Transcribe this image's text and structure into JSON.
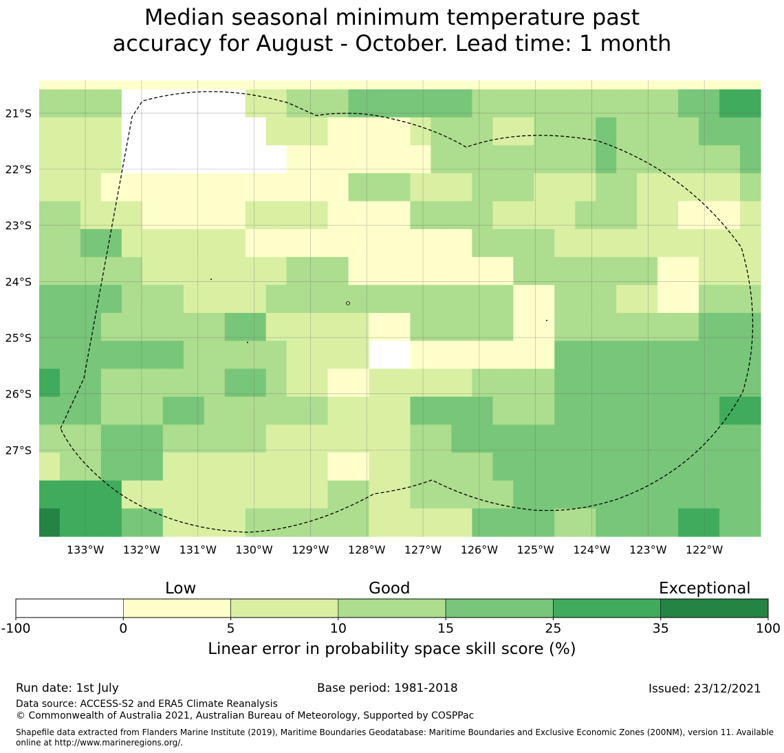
{
  "title": {
    "line1": "Median seasonal minimum temperature past",
    "line2": "accuracy for August - October. Lead time: 1 month"
  },
  "map": {
    "lat_labels": [
      "21°S",
      "22°S",
      "23°S",
      "24°S",
      "25°S",
      "26°S",
      "27°S"
    ],
    "lon_labels": [
      "133°W",
      "132°W",
      "131°W",
      "130°W",
      "129°W",
      "128°W",
      "127°W",
      "126°W",
      "125°W",
      "124°W",
      "123°W",
      "122°W"
    ],
    "lat_values": [
      -21,
      -22,
      -23,
      -24,
      -25,
      -26,
      -27
    ],
    "lon_values": [
      -133,
      -132,
      -131,
      -130,
      -129,
      -128,
      -127,
      -126,
      -125,
      -124,
      -123,
      -122
    ],
    "extent": {
      "lon_min": -133.82,
      "lon_max": -121.0,
      "lat_top": -20.42,
      "lat_bottom": -28.54
    },
    "grid_cell_deg": 0.5556,
    "category_colors": [
      "#ffffff",
      "#ffffcc",
      "#d9f0a3",
      "#addd8e",
      "#78c679",
      "#41ab5d",
      "#238443"
    ],
    "cells": [
      [
        1,
        1,
        1,
        1,
        1,
        1,
        1,
        1,
        1,
        1,
        1,
        1,
        1,
        1,
        1,
        1,
        1,
        1,
        1,
        1,
        1,
        1,
        1,
        1,
        1,
        1,
        1,
        1,
        1,
        1,
        1,
        1,
        1,
        1,
        1
      ],
      [
        3,
        3,
        3,
        3,
        0,
        0,
        0,
        0,
        0,
        0,
        2,
        2,
        3,
        3,
        3,
        4,
        4,
        4,
        4,
        4,
        4,
        3,
        3,
        3,
        3,
        3,
        3,
        3,
        3,
        3,
        3,
        4,
        4,
        5,
        5
      ],
      [
        2,
        2,
        2,
        2,
        0,
        0,
        0,
        0,
        0,
        0,
        0,
        2,
        2,
        2,
        1,
        1,
        1,
        1,
        2,
        3,
        3,
        3,
        2,
        2,
        3,
        3,
        3,
        4,
        3,
        3,
        3,
        3,
        4,
        4,
        4
      ],
      [
        2,
        2,
        2,
        2,
        0,
        0,
        0,
        0,
        0,
        0,
        0,
        0,
        1,
        1,
        1,
        1,
        1,
        1,
        1,
        3,
        3,
        3,
        3,
        3,
        3,
        3,
        3,
        4,
        3,
        3,
        3,
        3,
        3,
        3,
        4
      ],
      [
        2,
        2,
        2,
        1,
        1,
        1,
        1,
        1,
        1,
        1,
        1,
        1,
        1,
        1,
        1,
        3,
        3,
        3,
        2,
        2,
        2,
        3,
        3,
        3,
        2,
        2,
        2,
        3,
        3,
        2,
        2,
        2,
        2,
        2,
        3
      ],
      [
        3,
        3,
        2,
        2,
        2,
        1,
        1,
        1,
        1,
        1,
        2,
        2,
        2,
        2,
        1,
        1,
        1,
        1,
        3,
        3,
        3,
        3,
        2,
        2,
        2,
        2,
        3,
        3,
        3,
        2,
        2,
        1,
        1,
        1,
        2
      ],
      [
        3,
        3,
        4,
        4,
        2,
        2,
        2,
        2,
        2,
        2,
        1,
        1,
        1,
        1,
        1,
        1,
        1,
        1,
        1,
        1,
        1,
        3,
        3,
        3,
        3,
        2,
        2,
        2,
        2,
        2,
        2,
        2,
        2,
        2,
        2
      ],
      [
        3,
        3,
        3,
        3,
        3,
        2,
        2,
        2,
        2,
        2,
        2,
        2,
        3,
        3,
        3,
        1,
        1,
        1,
        1,
        1,
        1,
        1,
        1,
        3,
        3,
        3,
        3,
        3,
        3,
        3,
        1,
        1,
        2,
        2,
        2
      ],
      [
        4,
        4,
        4,
        4,
        3,
        3,
        3,
        2,
        2,
        2,
        2,
        3,
        3,
        3,
        3,
        3,
        3,
        3,
        3,
        3,
        3,
        3,
        3,
        1,
        1,
        3,
        3,
        3,
        2,
        2,
        1,
        1,
        3,
        3,
        3
      ],
      [
        4,
        4,
        4,
        3,
        3,
        3,
        3,
        3,
        3,
        4,
        4,
        2,
        2,
        2,
        2,
        2,
        1,
        1,
        3,
        3,
        3,
        3,
        3,
        1,
        1,
        3,
        3,
        3,
        3,
        3,
        3,
        3,
        4,
        4,
        4
      ],
      [
        4,
        4,
        4,
        4,
        4,
        4,
        4,
        3,
        3,
        3,
        3,
        3,
        2,
        2,
        2,
        2,
        0,
        0,
        1,
        1,
        1,
        1,
        1,
        1,
        1,
        4,
        4,
        4,
        4,
        4,
        4,
        4,
        4,
        4,
        4
      ],
      [
        5,
        4,
        4,
        3,
        3,
        3,
        3,
        3,
        3,
        4,
        4,
        3,
        2,
        2,
        1,
        1,
        2,
        2,
        2,
        2,
        2,
        3,
        3,
        3,
        3,
        4,
        4,
        4,
        4,
        4,
        4,
        4,
        4,
        4,
        4
      ],
      [
        4,
        4,
        4,
        3,
        3,
        3,
        4,
        4,
        3,
        3,
        3,
        3,
        3,
        3,
        2,
        2,
        2,
        2,
        4,
        4,
        4,
        4,
        3,
        3,
        3,
        4,
        4,
        4,
        4,
        4,
        4,
        4,
        4,
        5,
        5
      ],
      [
        3,
        3,
        3,
        4,
        4,
        4,
        3,
        3,
        3,
        3,
        3,
        2,
        2,
        2,
        2,
        2,
        2,
        2,
        3,
        3,
        4,
        4,
        4,
        4,
        4,
        4,
        4,
        4,
        4,
        4,
        4,
        4,
        4,
        4,
        4
      ],
      [
        2,
        3,
        3,
        4,
        4,
        4,
        2,
        2,
        2,
        2,
        2,
        2,
        2,
        2,
        1,
        1,
        2,
        2,
        3,
        3,
        3,
        3,
        4,
        4,
        4,
        4,
        4,
        4,
        4,
        4,
        4,
        4,
        4,
        4,
        4
      ],
      [
        5,
        5,
        5,
        5,
        2,
        2,
        2,
        2,
        2,
        2,
        2,
        2,
        2,
        2,
        3,
        3,
        2,
        2,
        3,
        3,
        3,
        3,
        3,
        4,
        4,
        4,
        4,
        4,
        4,
        4,
        4,
        4,
        4,
        4,
        4
      ],
      [
        6,
        5,
        5,
        5,
        4,
        4,
        2,
        2,
        2,
        2,
        3,
        3,
        3,
        3,
        3,
        3,
        2,
        2,
        2,
        2,
        2,
        4,
        4,
        4,
        4,
        3,
        3,
        4,
        4,
        4,
        4,
        5,
        5,
        4,
        4
      ]
    ]
  },
  "colorbar": {
    "category_labels": [
      "Low",
      "Good",
      "Exceptional"
    ],
    "tick_labels": [
      "-100",
      "0",
      "5",
      "10",
      "15",
      "25",
      "35",
      "100"
    ],
    "colors": [
      "#ffffff",
      "#ffffcc",
      "#d9f0a3",
      "#addd8e",
      "#78c679",
      "#41ab5d",
      "#238443"
    ],
    "axis_label": "Linear error in probability space skill score (%)"
  },
  "footer": {
    "run_date": "Run date: 1st July",
    "base_period": "Base period: 1981-2018",
    "issued": "Issued: 23/12/2021",
    "data_source": "Data source: ACCESS-S2 and ERA5 Climate Reanalysis",
    "copyright": "© Commonwealth of Australia 2021, Australian Bureau of Meteorology, Supported by COSPPac",
    "shapefile_line1": "Shapefile data extracted from Flanders Marine Institute (2019), Maritime Boundaries Geodatabase: Maritime Boundaries and Exclusive Economic Zones (200NM), version 11. Available",
    "shapefile_line2": "online at http://www.marineregions.org/."
  }
}
